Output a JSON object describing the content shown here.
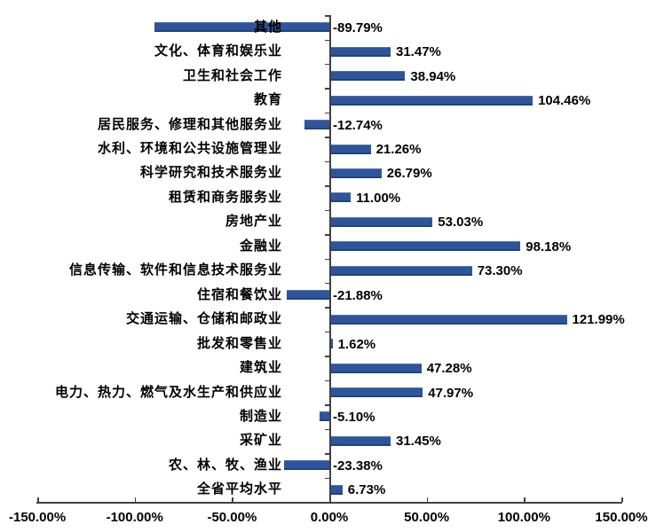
{
  "chart_data": {
    "type": "bar",
    "orientation": "horizontal",
    "title": "",
    "xlabel": "",
    "ylabel": "",
    "categories": [
      "其他",
      "文化、体育和娱乐业",
      "卫生和社会工作",
      "教育",
      "居民服务、修理和其他服务业",
      "水利、环境和公共设施管理业",
      "科学研究和技术服务业",
      "租赁和商务服务业",
      "房地产业",
      "金融业",
      "信息传输、软件和信息技术服务业",
      "住宿和餐饮业",
      "交通运输、仓储和邮政业",
      "批发和零售业",
      "建筑业",
      "电力、热力、燃气及水生产和供应业",
      "制造业",
      "采矿业",
      "农、林、牧、渔业",
      "全省平均水平"
    ],
    "values": [
      -89.79,
      31.47,
      38.94,
      104.46,
      -12.74,
      21.26,
      26.79,
      11.0,
      53.03,
      98.18,
      73.3,
      -21.88,
      121.99,
      1.62,
      47.28,
      47.97,
      -5.1,
      31.45,
      -23.38,
      6.73
    ],
    "value_labels": [
      "-89.79%",
      "31.47%",
      "38.94%",
      "104.46%",
      "-12.74%",
      "21.26%",
      "26.79%",
      "11.00%",
      "53.03%",
      "98.18%",
      "73.30%",
      "-21.88%",
      "121.99%",
      "1.62%",
      "47.28%",
      "47.97%",
      "-5.10%",
      "31.45%",
      "-23.38%",
      "6.73%"
    ],
    "x_tick_labels": [
      "-150.00%",
      "-100.00%",
      "-50.00%",
      "0.00%",
      "50.00%",
      "100.00%",
      "150.00%"
    ],
    "x_tick_values": [
      -150,
      -100,
      -50,
      0,
      50,
      100,
      150
    ],
    "xlim": [
      -150,
      150
    ],
    "grid": false,
    "legend": null,
    "bar_color": "#2E559C",
    "axis_color": "#404040",
    "text_color": "#000000",
    "background_color": "#FFFFFF"
  }
}
